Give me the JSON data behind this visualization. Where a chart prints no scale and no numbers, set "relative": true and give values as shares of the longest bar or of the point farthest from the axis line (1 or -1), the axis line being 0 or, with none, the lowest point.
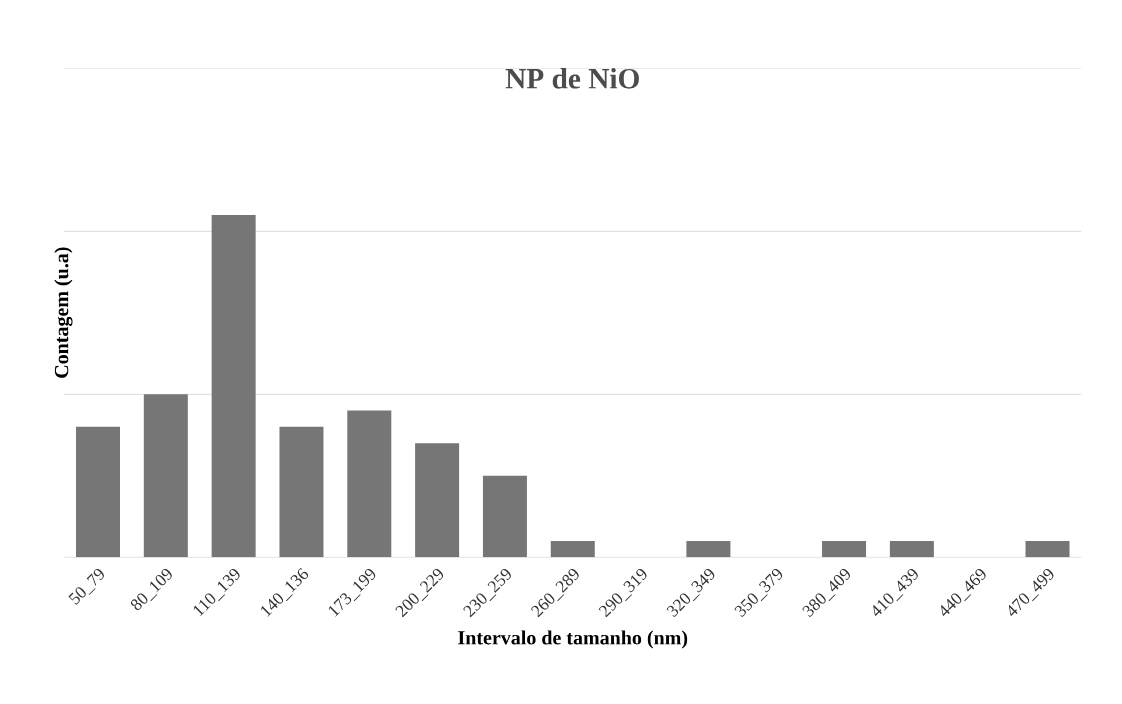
{
  "chart_data": {
    "type": "bar",
    "title": "NP de NiO",
    "xlabel": "Intervalo de tamanho (nm)",
    "ylabel": "Contagem (u.a)",
    "categories": [
      "50_79",
      "80_109",
      "110_139",
      "140_136",
      "173_199",
      "200_229",
      "230_259",
      "260_289",
      "290_319",
      "320_349",
      "350_379",
      "380_409",
      "410_439",
      "440_469",
      "470_499"
    ],
    "values": [
      0.381,
      0.476,
      1,
      0.381,
      0.429,
      0.333,
      0.238,
      0.048,
      0,
      0.048,
      0,
      0.048,
      0.048,
      0,
      0.048
    ],
    "color": "#767676",
    "relative": true,
    "ref_lines": [
      {
        "axis": "y",
        "value": 0.476,
        "color": "#d9d9d9"
      },
      {
        "axis": "y",
        "value": 0.952,
        "color": "#d9d9d9"
      },
      {
        "axis": "y",
        "value": 1.429,
        "color": "#d9d9d9"
      }
    ]
  }
}
